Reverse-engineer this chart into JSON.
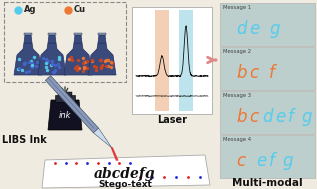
{
  "bg_color": "#f0ebe0",
  "flask_colors": [
    "#3a4a7a",
    "#3a4a7a",
    "#3a4a7a",
    "#3a4a7a"
  ],
  "ag_dot_color": "#55ccee",
  "cu_dot_color": "#ee7733",
  "ink_color": "#111122",
  "laser_color": "#dd3333",
  "message_bg": "#bccfcc",
  "ag_color": "#55ccee",
  "cu_color": "#ee7733",
  "spectrum_bg": "#ffffff",
  "orange_band": "#e8a878",
  "cyan_band": "#88ccdd",
  "spectrum_line": "#111111",
  "dashed_box": "#888888",
  "msg_labels": [
    "Message 1",
    "Message 2",
    "Message 3",
    "Message 4"
  ],
  "msgs": [
    [
      [
        "d",
        "#55ccee"
      ],
      [
        "e",
        "#55ccee"
      ],
      [
        " ",
        null
      ],
      [
        "g",
        "#55ccee"
      ]
    ],
    [
      [
        "b",
        "#ee7733"
      ],
      [
        "c",
        "#ee7733"
      ],
      [
        " ",
        null
      ],
      [
        "f",
        "#ee7733"
      ]
    ],
    [
      [
        "b",
        "#ee7733"
      ],
      [
        "c",
        "#ee7733"
      ],
      [
        "d",
        "#55ccee"
      ],
      [
        "e",
        "#55ccee"
      ],
      [
        "f",
        "#55ccee"
      ],
      [
        "g",
        "#55ccee"
      ]
    ],
    [
      [
        "c",
        "#ee7733"
      ],
      [
        " ",
        null
      ],
      [
        "e",
        "#55ccee"
      ],
      [
        "f",
        "#55ccee"
      ],
      [
        "g",
        "#55ccee"
      ]
    ]
  ],
  "libs_label": "LIBS Ink",
  "laser_label": "Laser",
  "stego_label": "Stego-text",
  "multimodal_label": "Multi-modal\nSteganography",
  "fig_w": 3.17,
  "fig_h": 1.89,
  "dpi": 100
}
